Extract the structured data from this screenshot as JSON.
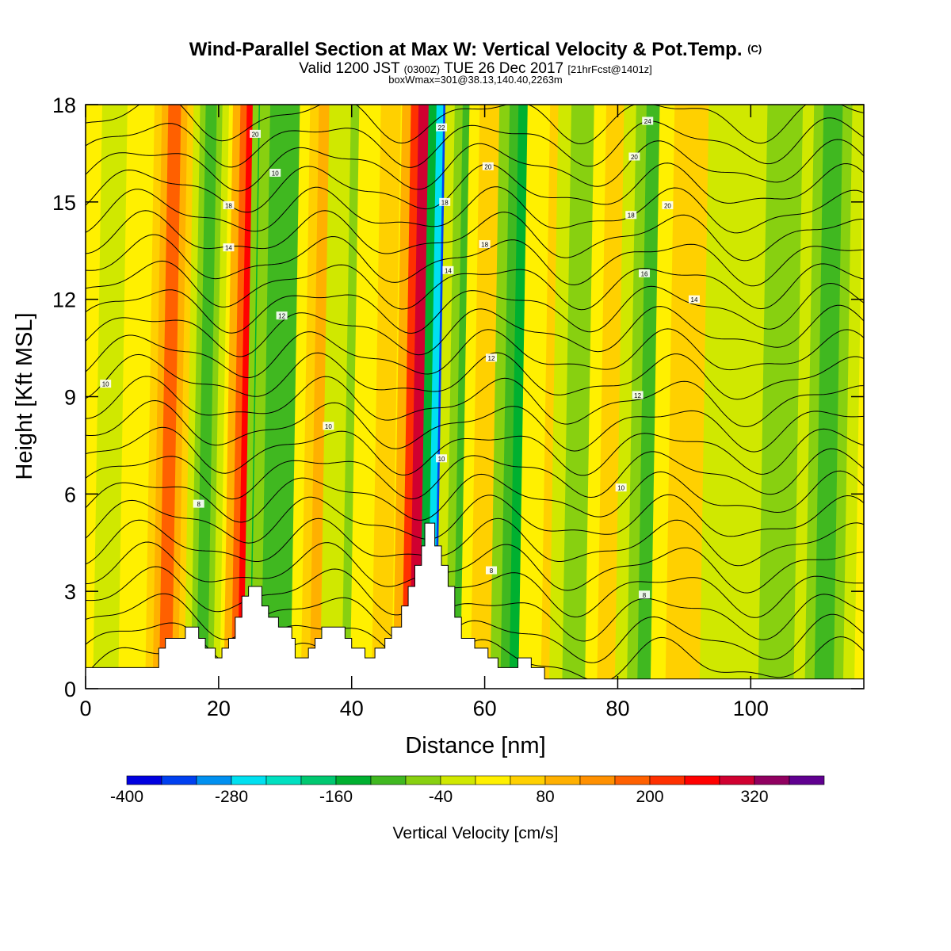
{
  "title": {
    "main": "Wind-Parallel Section at Max W: Vertical Velocity & Pot.Temp.",
    "copyright": "(C)",
    "valid_a": "Valid 1200 JST",
    "valid_zone": "(0300Z)",
    "valid_b": "TUE 26 Dec 2017",
    "forecast": "[21hrFcst@1401z]",
    "box": "boxWmax=301@38.13,140.40,2263m"
  },
  "colors": {
    "bins": [
      "#0000e0",
      "#0040f0",
      "#0090f0",
      "#00e0f0",
      "#00e0c0",
      "#00c870",
      "#00b030",
      "#40b820",
      "#88d010",
      "#d0e800",
      "#fff000",
      "#ffd000",
      "#ffb000",
      "#ff9000",
      "#ff6000",
      "#ff3000",
      "#ff0000",
      "#d00030",
      "#900060",
      "#600090"
    ],
    "terrain": "#ffffff",
    "contour": "#000000"
  },
  "chart_data": {
    "type": "heatmap",
    "xlabel": "Distance [nm]",
    "ylabel": "Height [Kft MSL]",
    "xlim": [
      0,
      117
    ],
    "ylim": [
      0,
      18
    ],
    "xticks": [
      0,
      20,
      40,
      60,
      80,
      100
    ],
    "yticks": [
      0,
      3,
      6,
      9,
      12,
      15,
      18
    ],
    "colorbar": {
      "label": "Vertical Velocity [cm/s]",
      "ticks": [
        -400,
        -280,
        -160,
        -40,
        80,
        200,
        320
      ],
      "min": -400,
      "max": 400,
      "step": 40
    },
    "vertical_velocity_bands": [
      {
        "x": 3,
        "w": 1.0,
        "value": -30
      },
      {
        "x": 12,
        "w": 1.6,
        "value": 170
      },
      {
        "x": 17.5,
        "w": 1.4,
        "value": -110
      },
      {
        "x": 23.8,
        "w": 1.6,
        "value": 240
      },
      {
        "x": 26.2,
        "w": 1.3,
        "value": -190
      },
      {
        "x": 29,
        "w": 2.2,
        "value": -120
      },
      {
        "x": 35,
        "w": 2.2,
        "value": 80
      },
      {
        "x": 40,
        "w": 2.5,
        "value": -50
      },
      {
        "x": 44.5,
        "w": 2.5,
        "value": 40
      },
      {
        "x": 49.8,
        "w": 1.9,
        "value": 290
      },
      {
        "x": 53.4,
        "w": 1.7,
        "value": -360
      },
      {
        "x": 56.5,
        "w": 2.0,
        "value": -110
      },
      {
        "x": 60.5,
        "w": 2.2,
        "value": 60
      },
      {
        "x": 65,
        "w": 2.2,
        "value": -140
      },
      {
        "x": 70,
        "w": 2.6,
        "value": 50
      },
      {
        "x": 75,
        "w": 2.8,
        "value": -80
      },
      {
        "x": 80,
        "w": 2.6,
        "value": 60
      },
      {
        "x": 84.5,
        "w": 2.6,
        "value": -100
      },
      {
        "x": 91,
        "w": 3.2,
        "value": 70
      },
      {
        "x": 98,
        "w": 3.0,
        "value": -20
      },
      {
        "x": 104,
        "w": 2.4,
        "value": -60
      },
      {
        "x": 111,
        "w": 2.4,
        "value": -100
      }
    ],
    "terrain": [
      [
        0,
        0.65
      ],
      [
        11,
        0.65
      ],
      [
        11,
        1.25
      ],
      [
        12,
        1.25
      ],
      [
        12,
        1.55
      ],
      [
        15,
        1.55
      ],
      [
        15,
        1.9
      ],
      [
        17,
        1.9
      ],
      [
        17,
        1.55
      ],
      [
        18,
        1.55
      ],
      [
        18,
        1.25
      ],
      [
        19.5,
        1.25
      ],
      [
        19.5,
        0.95
      ],
      [
        20.5,
        0.95
      ],
      [
        20.5,
        1.25
      ],
      [
        21.5,
        1.25
      ],
      [
        21.5,
        1.55
      ],
      [
        22.5,
        1.55
      ],
      [
        22.5,
        2.2
      ],
      [
        23.5,
        2.2
      ],
      [
        23.5,
        2.85
      ],
      [
        24.5,
        2.85
      ],
      [
        24.5,
        3.15
      ],
      [
        26.5,
        3.15
      ],
      [
        26.5,
        2.55
      ],
      [
        27.5,
        2.55
      ],
      [
        27.5,
        2.2
      ],
      [
        29,
        2.2
      ],
      [
        29,
        1.9
      ],
      [
        31,
        1.9
      ],
      [
        31,
        1.55
      ],
      [
        31.5,
        1.55
      ],
      [
        31.5,
        0.95
      ],
      [
        33.5,
        0.95
      ],
      [
        33.5,
        1.25
      ],
      [
        34.5,
        1.25
      ],
      [
        34.5,
        1.55
      ],
      [
        35.5,
        1.55
      ],
      [
        35.5,
        1.9
      ],
      [
        39,
        1.9
      ],
      [
        39,
        1.55
      ],
      [
        40,
        1.55
      ],
      [
        40,
        1.25
      ],
      [
        42,
        1.25
      ],
      [
        42,
        0.95
      ],
      [
        43.5,
        0.95
      ],
      [
        43.5,
        1.25
      ],
      [
        45,
        1.25
      ],
      [
        45,
        1.55
      ],
      [
        46,
        1.55
      ],
      [
        46,
        1.9
      ],
      [
        47.5,
        1.9
      ],
      [
        47.5,
        2.55
      ],
      [
        48.5,
        2.55
      ],
      [
        48.5,
        3.15
      ],
      [
        49.5,
        3.15
      ],
      [
        49.5,
        3.8
      ],
      [
        50.5,
        3.8
      ],
      [
        50.5,
        4.4
      ],
      [
        51,
        4.4
      ],
      [
        51,
        5.1
      ],
      [
        52.5,
        5.1
      ],
      [
        52.5,
        4.4
      ],
      [
        53.5,
        4.4
      ],
      [
        53.5,
        3.8
      ],
      [
        54.5,
        3.8
      ],
      [
        54.5,
        3.15
      ],
      [
        55.5,
        3.15
      ],
      [
        55.5,
        2.2
      ],
      [
        56.5,
        2.2
      ],
      [
        56.5,
        1.55
      ],
      [
        58.5,
        1.55
      ],
      [
        58.5,
        1.25
      ],
      [
        60.5,
        1.25
      ],
      [
        60.5,
        0.95
      ],
      [
        62,
        0.95
      ],
      [
        62,
        0.65
      ],
      [
        65,
        0.65
      ],
      [
        65,
        0.95
      ],
      [
        67,
        0.95
      ],
      [
        67,
        0.65
      ],
      [
        69,
        0.65
      ],
      [
        69,
        0.3
      ],
      [
        117,
        0.3
      ],
      [
        117,
        0
      ]
    ],
    "theta_contours": {
      "count": 24,
      "labels": [
        {
          "x": 17,
          "y": 5.7,
          "text": "8"
        },
        {
          "x": 3,
          "y": 9.4,
          "text": "10"
        },
        {
          "x": 36.5,
          "y": 8.1,
          "text": "10"
        },
        {
          "x": 53.5,
          "y": 7.1,
          "text": "10"
        },
        {
          "x": 80.5,
          "y": 6.2,
          "text": "10"
        },
        {
          "x": 61,
          "y": 3.65,
          "text": "8"
        },
        {
          "x": 84,
          "y": 2.9,
          "text": "8"
        },
        {
          "x": 29.5,
          "y": 11.5,
          "text": "12"
        },
        {
          "x": 61,
          "y": 10.2,
          "text": "12"
        },
        {
          "x": 83,
          "y": 9.05,
          "text": "12"
        },
        {
          "x": 21.5,
          "y": 13.6,
          "text": "14"
        },
        {
          "x": 54.5,
          "y": 12.9,
          "text": "14"
        },
        {
          "x": 84,
          "y": 12.8,
          "text": "16"
        },
        {
          "x": 91.5,
          "y": 12.0,
          "text": "14"
        },
        {
          "x": 60,
          "y": 13.7,
          "text": "18"
        },
        {
          "x": 21.5,
          "y": 14.9,
          "text": "18"
        },
        {
          "x": 54,
          "y": 15.0,
          "text": "18"
        },
        {
          "x": 82,
          "y": 14.6,
          "text": "18"
        },
        {
          "x": 28.5,
          "y": 15.9,
          "text": "10"
        },
        {
          "x": 87.5,
          "y": 14.9,
          "text": "20"
        },
        {
          "x": 60.5,
          "y": 16.1,
          "text": "20"
        },
        {
          "x": 82.5,
          "y": 16.4,
          "text": "20"
        },
        {
          "x": 25.5,
          "y": 17.1,
          "text": "20"
        },
        {
          "x": 53.5,
          "y": 17.3,
          "text": "22"
        },
        {
          "x": 84.5,
          "y": 17.5,
          "text": "24"
        }
      ]
    }
  }
}
